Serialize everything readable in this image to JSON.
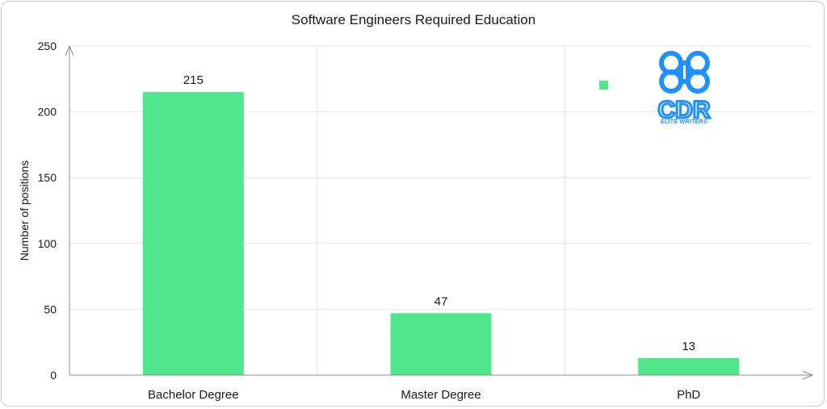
{
  "chart_data": {
    "type": "bar",
    "title": "Software Engineers Required Education",
    "xlabel": "",
    "ylabel": "Number of positions",
    "categories": [
      "Bachelor Degree",
      "Master Degree",
      "PhD"
    ],
    "series": [
      {
        "values": [
          215,
          47,
          13
        ],
        "color": "#50e68c"
      }
    ],
    "data_labels": [
      "215",
      "47",
      "13"
    ],
    "ylim": [
      0,
      250
    ],
    "yticks": [
      0,
      50,
      100,
      150,
      200,
      250
    ],
    "ytick_labels": [
      "0",
      "50",
      "100",
      "150",
      "200",
      "250"
    ],
    "grid": true,
    "legend": "top-right",
    "legend_marker_color": "#50e68c"
  },
  "logo": {
    "text": "CDR",
    "subtitle": "ELITE WRITERS",
    "color": "#1e90ff"
  }
}
